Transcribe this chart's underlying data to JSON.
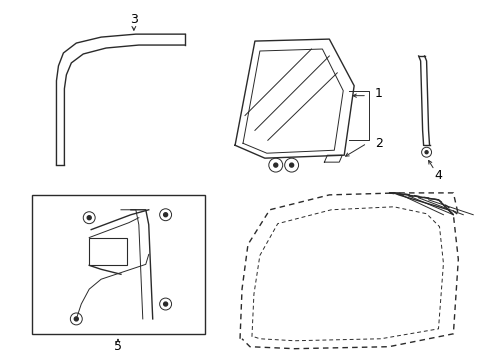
{
  "background": "#ffffff",
  "line_color": "#2a2a2a",
  "label_color": "#000000",
  "fig_width": 4.89,
  "fig_height": 3.6,
  "dpi": 100
}
